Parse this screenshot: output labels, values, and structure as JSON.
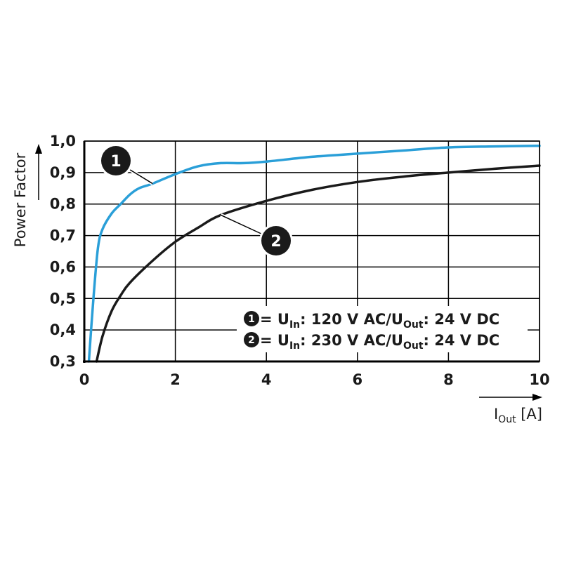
{
  "chart_data": {
    "type": "line",
    "title": "",
    "xlabel": {
      "main": "I",
      "sub": "Out",
      "unit": " [A]"
    },
    "ylabel": "Power Factor",
    "xlim": [
      0,
      10
    ],
    "ylim": [
      0.3,
      1.0
    ],
    "x_ticks": [
      0,
      2,
      4,
      6,
      8,
      10
    ],
    "x_tick_labels": [
      "0",
      "2",
      "4",
      "6",
      "8",
      "10"
    ],
    "y_ticks": [
      0.3,
      0.4,
      0.5,
      0.6,
      0.7,
      0.8,
      0.9,
      1.0
    ],
    "y_tick_labels": [
      "0,3",
      "0,4",
      "0,5",
      "0,6",
      "0,7",
      "0,8",
      "0,9",
      "1,0"
    ],
    "grid": true,
    "legend_position": "bottom-right",
    "colors": {
      "series1": "#2a9fd8",
      "series2": "#1a1a1a",
      "grid": "#000000",
      "badge": "#1a1a1a"
    },
    "series": [
      {
        "id": "1",
        "badge": "1",
        "legend": {
          "badge": "1",
          "parts": [
            {
              "text": " = U",
              "sub": false
            },
            {
              "text": "In",
              "sub": true
            },
            {
              "text": ": 120 V AC/U",
              "sub": false
            },
            {
              "text": "Out",
              "sub": true
            },
            {
              "text": ": 24 V DC",
              "sub": false
            }
          ]
        },
        "x": [
          0.1,
          0.2,
          0.3,
          0.4,
          0.6,
          0.8,
          1.0,
          1.2,
          1.5,
          2.0,
          2.5,
          3.0,
          3.5,
          4.0,
          5.0,
          6.0,
          7.0,
          8.0,
          9.0,
          10.0
        ],
        "y": [
          0.3,
          0.5,
          0.66,
          0.72,
          0.77,
          0.8,
          0.83,
          0.85,
          0.865,
          0.895,
          0.92,
          0.93,
          0.93,
          0.935,
          0.95,
          0.96,
          0.97,
          0.98,
          0.983,
          0.985
        ]
      },
      {
        "id": "2",
        "badge": "2",
        "legend": {
          "badge": "2",
          "parts": [
            {
              "text": " = U",
              "sub": false
            },
            {
              "text": "In",
              "sub": true
            },
            {
              "text": ": 230 V AC/U",
              "sub": false
            },
            {
              "text": "Out",
              "sub": true
            },
            {
              "text": ": 24 V DC",
              "sub": false
            }
          ]
        },
        "x": [
          0.27,
          0.4,
          0.6,
          0.8,
          1.0,
          1.5,
          2.0,
          2.5,
          3.0,
          4.0,
          5.0,
          6.0,
          7.0,
          8.0,
          9.0,
          10.0
        ],
        "y": [
          0.3,
          0.38,
          0.46,
          0.51,
          0.55,
          0.62,
          0.68,
          0.725,
          0.765,
          0.81,
          0.845,
          0.87,
          0.887,
          0.9,
          0.912,
          0.922
        ]
      }
    ]
  }
}
